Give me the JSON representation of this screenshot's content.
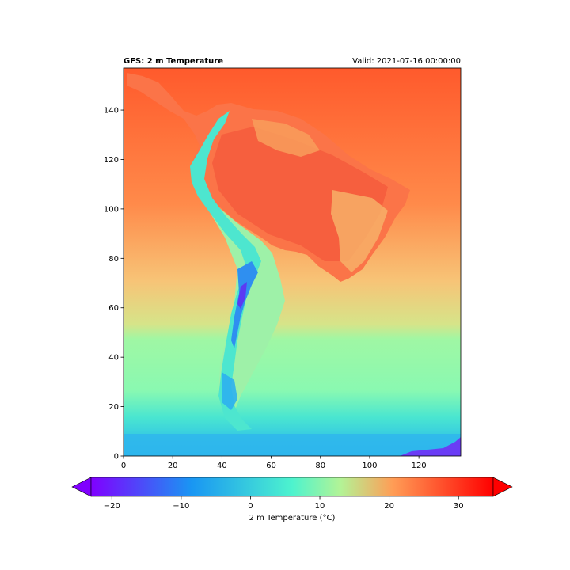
{
  "chart_data": {
    "type": "heatmap",
    "title_left": "GFS: 2 m Temperature",
    "title_right": "Valid: 2021-07-16 00:00:00",
    "xlabel": "",
    "ylabel": "",
    "xlim": [
      0,
      137
    ],
    "ylim": [
      0,
      157
    ],
    "x_ticks": [
      0,
      20,
      40,
      60,
      80,
      100,
      120
    ],
    "y_ticks": [
      0,
      20,
      40,
      60,
      80,
      100,
      120,
      140
    ],
    "grid": false,
    "colormap": "rainbow",
    "colorbar": {
      "label": "2 m Temperature (°C)",
      "orientation": "horizontal",
      "vmin": -23,
      "vmax": 35,
      "ticks": [
        -20,
        -10,
        0,
        10,
        20,
        30
      ],
      "extend": "both"
    },
    "color_stops": [
      {
        "value": -23,
        "color": "#8000ff"
      },
      {
        "value": -8.5,
        "color": "#1996f3"
      },
      {
        "value": 6,
        "color": "#4df3ce"
      },
      {
        "value": 13,
        "color": "#b3f396"
      },
      {
        "value": 20.5,
        "color": "#ff9d56"
      },
      {
        "value": 35,
        "color": "#ff0000"
      }
    ],
    "regions": [
      {
        "name": "northern ocean",
        "approx_value": 28
      },
      {
        "name": "tropical land interior",
        "approx_value": 24
      },
      {
        "name": "andes highlands",
        "approx_value": 2
      },
      {
        "name": "southern andes minimum",
        "approx_value": -18
      },
      {
        "name": "mid-latitude ocean",
        "approx_value": 14
      },
      {
        "name": "southern ocean",
        "approx_value": 6
      },
      {
        "name": "far south edge",
        "approx_value": -3
      }
    ]
  }
}
